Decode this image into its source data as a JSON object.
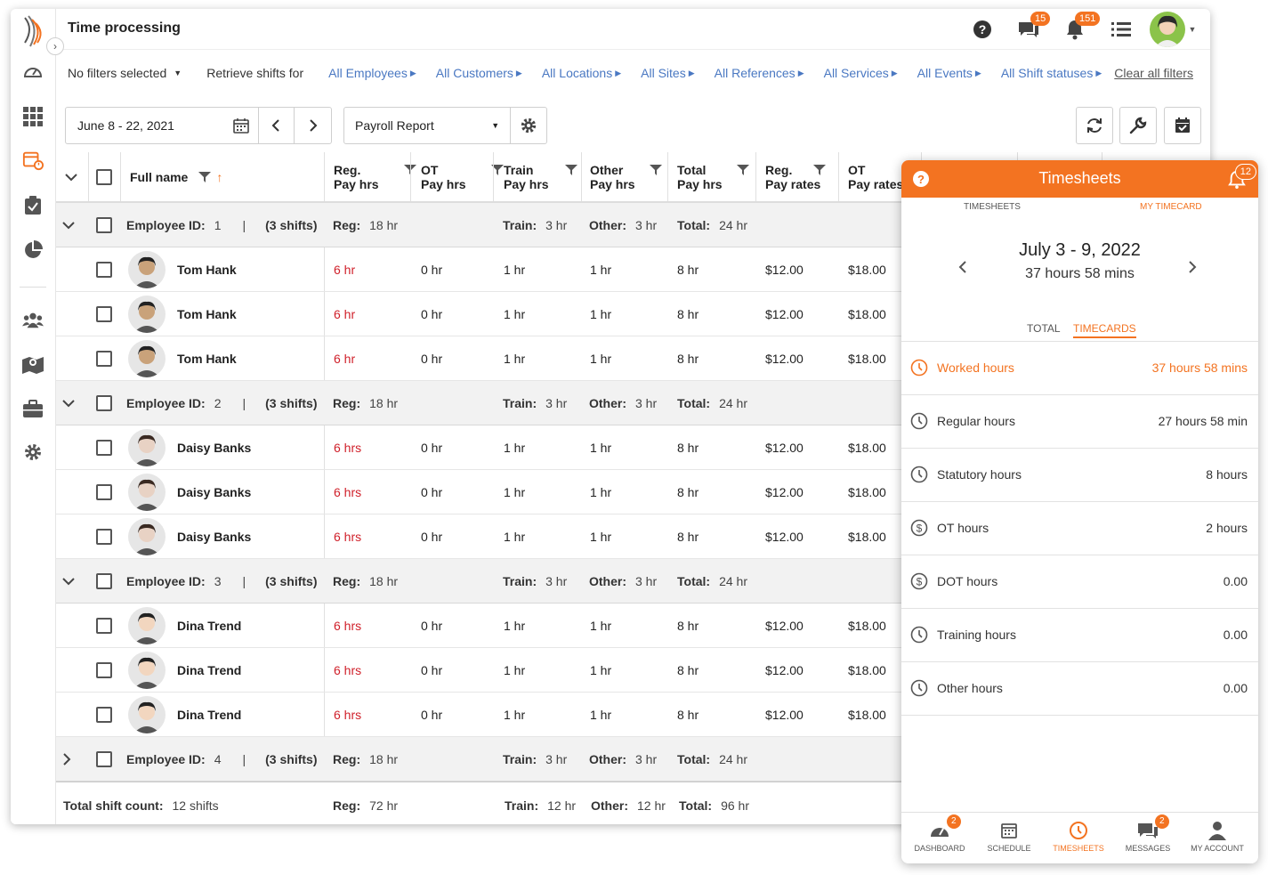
{
  "app": {
    "title": "Time processing",
    "badges": {
      "messages": "15",
      "notifications": "151"
    }
  },
  "filters": {
    "no_filters": "No filters selected",
    "retrieve": "Retrieve shifts for",
    "links": [
      "All Employees",
      "All Customers",
      "All Locations",
      "All Sites",
      "All References",
      "All Services",
      "All Events",
      "All Shift statuses"
    ],
    "clear": "Clear all filters"
  },
  "toolbar": {
    "date_range": "June 8 - 22, 2021",
    "report": "Payroll Report"
  },
  "columns": {
    "full_name": "Full name",
    "reg_pay_1": "Reg.",
    "reg_pay_2": "Pay hrs",
    "ot_pay_1": "OT",
    "ot_pay_2": "Pay hrs",
    "train_pay_1": "Train",
    "train_pay_2": "Pay hrs",
    "other_pay_1": "Other",
    "other_pay_2": "Pay hrs",
    "total_pay_1": "Total",
    "total_pay_2": "Pay hrs",
    "reg_rate_1": "Reg.",
    "reg_rate_2": "Pay rates",
    "ot_rate_1": "OT",
    "ot_rate_2": "Pay rates"
  },
  "groups": [
    {
      "id_label": "Employee ID:",
      "id": "1",
      "sep": "|",
      "shifts": "(3 shifts)",
      "reg_label": "Reg:",
      "reg": "18 hr",
      "train_label": "Train:",
      "train": "3 hr",
      "other_label": "Other:",
      "other": "3 hr",
      "total_label": "Total:",
      "total": "24 hr",
      "rows": [
        {
          "name": "Tom Hank",
          "reg": "6 hr",
          "ot": "0 hr",
          "train": "1 hr",
          "other": "1 hr",
          "total": "8 hr",
          "reg_rate": "$12.00",
          "ot_rate": "$18.00"
        },
        {
          "name": "Tom Hank",
          "reg": "6 hr",
          "ot": "0 hr",
          "train": "1 hr",
          "other": "1 hr",
          "total": "8 hr",
          "reg_rate": "$12.00",
          "ot_rate": "$18.00"
        },
        {
          "name": "Tom Hank",
          "reg": "6 hr",
          "ot": "0 hr",
          "train": "1 hr",
          "other": "1 hr",
          "total": "8 hr",
          "reg_rate": "$12.00",
          "ot_rate": "$18.00"
        }
      ]
    },
    {
      "id_label": "Employee ID:",
      "id": "2",
      "sep": "|",
      "shifts": "(3 shifts)",
      "reg_label": "Reg:",
      "reg": "18 hr",
      "train_label": "Train:",
      "train": "3 hr",
      "other_label": "Other:",
      "other": "3 hr",
      "total_label": "Total:",
      "total": "24 hr",
      "rows": [
        {
          "name": "Daisy Banks",
          "reg": "6 hrs",
          "ot": "0 hr",
          "train": "1 hr",
          "other": "1 hr",
          "total": "8 hr",
          "reg_rate": "$12.00",
          "ot_rate": "$18.00"
        },
        {
          "name": "Daisy Banks",
          "reg": "6 hrs",
          "ot": "0 hr",
          "train": "1 hr",
          "other": "1 hr",
          "total": "8 hr",
          "reg_rate": "$12.00",
          "ot_rate": "$18.00"
        },
        {
          "name": "Daisy Banks",
          "reg": "6 hrs",
          "ot": "0 hr",
          "train": "1 hr",
          "other": "1 hr",
          "total": "8 hr",
          "reg_rate": "$12.00",
          "ot_rate": "$18.00"
        }
      ]
    },
    {
      "id_label": "Employee ID:",
      "id": "3",
      "sep": "|",
      "shifts": "(3 shifts)",
      "reg_label": "Reg:",
      "reg": "18 hr",
      "train_label": "Train:",
      "train": "3 hr",
      "other_label": "Other:",
      "other": "3 hr",
      "total_label": "Total:",
      "total": "24 hr",
      "rows": [
        {
          "name": "Dina Trend",
          "reg": "6 hrs",
          "ot": "0 hr",
          "train": "1 hr",
          "other": "1 hr",
          "total": "8 hr",
          "reg_rate": "$12.00",
          "ot_rate": "$18.00"
        },
        {
          "name": "Dina Trend",
          "reg": "6 hrs",
          "ot": "0 hr",
          "train": "1 hr",
          "other": "1 hr",
          "total": "8 hr",
          "reg_rate": "$12.00",
          "ot_rate": "$18.00"
        },
        {
          "name": "Dina Trend",
          "reg": "6 hrs",
          "ot": "0 hr",
          "train": "1 hr",
          "other": "1 hr",
          "total": "8 hr",
          "reg_rate": "$12.00",
          "ot_rate": "$18.00"
        }
      ]
    },
    {
      "id_label": "Employee ID:",
      "id": "4",
      "sep": "|",
      "shifts": "(3 shifts)",
      "reg_label": "Reg:",
      "reg": "18 hr",
      "train_label": "Train:",
      "train": "3 hr",
      "other_label": "Other:",
      "other": "3 hr",
      "total_label": "Total:",
      "total": "24 hr",
      "rows": []
    }
  ],
  "footer": {
    "count_label": "Total shift count:",
    "count": "12 shifts",
    "reg_label": "Reg:",
    "reg": "72 hr",
    "train_label": "Train:",
    "train": "12 hr",
    "other_label": "Other:",
    "other": "12 hr",
    "total_label": "Total:",
    "total": "96 hr"
  },
  "panel": {
    "title": "Timesheets",
    "badge": "12",
    "tab_timesheets": "TIMESHEETS",
    "tab_mytimecard": "MY TIMECARD",
    "week": "July 3 - 9, 2022",
    "week_total": "37 hours 58 mins",
    "sub_total": "TOTAL",
    "sub_timecards": "TIMECARDS",
    "rows": [
      {
        "label": "Worked hours",
        "value": "37 hours 58 mins",
        "icon": "clock-icon"
      },
      {
        "label": "Regular hours",
        "value": "27 hours 58 min",
        "icon": "clock-icon"
      },
      {
        "label": "Statutory hours",
        "value": "8 hours",
        "icon": "clock-icon"
      },
      {
        "label": "OT hours",
        "value": "2 hours",
        "icon": "dollar-icon"
      },
      {
        "label": "DOT hours",
        "value": "0.00",
        "icon": "dollar-icon"
      },
      {
        "label": "Training hours",
        "value": "0.00",
        "icon": "clock-icon"
      },
      {
        "label": "Other hours",
        "value": "0.00",
        "icon": "clock-icon"
      }
    ],
    "nav": [
      {
        "label": "DASHBOARD",
        "badge": "2"
      },
      {
        "label": "SCHEDULE",
        "badge": ""
      },
      {
        "label": "TIMESHEETS",
        "badge": ""
      },
      {
        "label": "MESSAGES",
        "badge": "2"
      },
      {
        "label": "MY ACCOUNT",
        "badge": ""
      }
    ]
  },
  "colors": {
    "accent": "#f37321",
    "link": "#4a78c2",
    "red": "#d0212b"
  }
}
